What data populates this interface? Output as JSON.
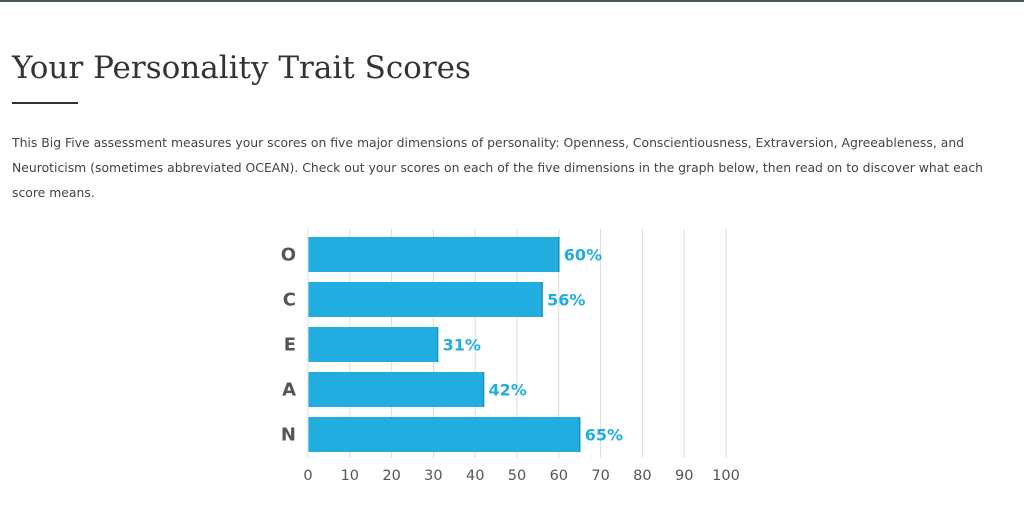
{
  "page": {
    "title": "Your Personality Trait Scores",
    "intro": "This Big Five assessment measures your scores on five major dimensions of personality: Openness, Conscientiousness, Extraversion, Agreeableness, and Neuroticism (sometimes abbreviated OCEAN). Check out your scores on each of the five dimensions in the graph below, then read on to discover what each score means."
  },
  "colors": {
    "bar": "#21ade0",
    "bar_edge": "#1a8fba",
    "value_label": "#21ade0",
    "grid": "#dddddd"
  },
  "chart_data": {
    "type": "bar",
    "orientation": "horizontal",
    "categories": [
      "O",
      "C",
      "E",
      "A",
      "N"
    ],
    "values": [
      60,
      56,
      31,
      42,
      65
    ],
    "value_labels": [
      "60%",
      "56%",
      "31%",
      "42%",
      "65%"
    ],
    "xlim": [
      0,
      100
    ],
    "xticks": [
      0,
      10,
      20,
      30,
      40,
      50,
      60,
      70,
      80,
      90,
      100
    ],
    "grid": true
  }
}
